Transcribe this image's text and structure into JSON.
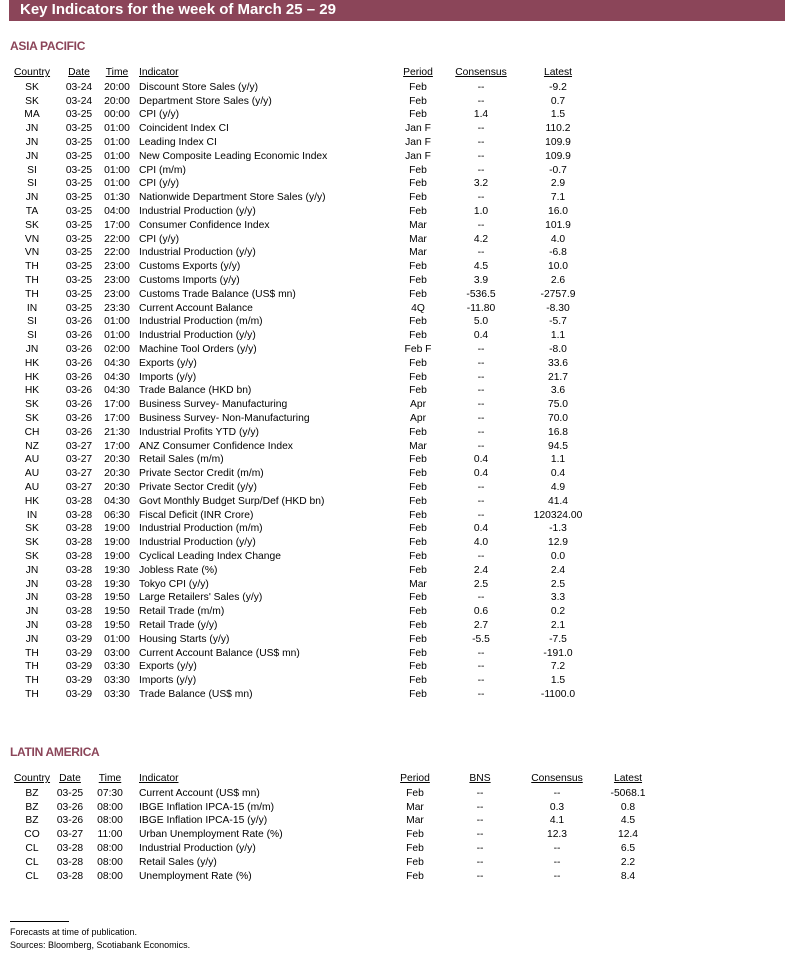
{
  "title": "Key Indicators for the week of March 25 – 29",
  "colors": {
    "accent": "#8b4559"
  },
  "asia": {
    "heading": "ASIA PACIFIC",
    "columns": [
      "Country",
      "Date",
      "Time",
      "Indicator",
      "Period",
      "Consensus",
      "Latest"
    ],
    "rows": [
      [
        "SK",
        "03-24",
        "20:00",
        "Discount Store Sales (y/y)",
        "Feb",
        "--",
        "-9.2"
      ],
      [
        "SK",
        "03-24",
        "20:00",
        "Department Store Sales (y/y)",
        "Feb",
        "--",
        "0.7"
      ],
      [
        "MA",
        "03-25",
        "00:00",
        "CPI (y/y)",
        "Feb",
        "1.4",
        "1.5"
      ],
      [
        "JN",
        "03-25",
        "01:00",
        "Coincident Index CI",
        "Jan F",
        "--",
        "110.2"
      ],
      [
        "JN",
        "03-25",
        "01:00",
        "Leading Index CI",
        "Jan F",
        "--",
        "109.9"
      ],
      [
        "JN",
        "03-25",
        "01:00",
        "New Composite Leading Economic Index",
        "Jan F",
        "--",
        "109.9"
      ],
      [
        "SI",
        "03-25",
        "01:00",
        "CPI (m/m)",
        "Feb",
        "--",
        "-0.7"
      ],
      [
        "SI",
        "03-25",
        "01:00",
        "CPI (y/y)",
        "Feb",
        "3.2",
        "2.9"
      ],
      [
        "JN",
        "03-25",
        "01:30",
        "Nationwide Department Store Sales (y/y)",
        "Feb",
        "--",
        "7.1"
      ],
      [
        "TA",
        "03-25",
        "04:00",
        "Industrial Production (y/y)",
        "Feb",
        "1.0",
        "16.0"
      ],
      [
        "SK",
        "03-25",
        "17:00",
        "Consumer Confidence Index",
        "Mar",
        "--",
        "101.9"
      ],
      [
        "VN",
        "03-25",
        "22:00",
        "CPI (y/y)",
        "Mar",
        "4.2",
        "4.0"
      ],
      [
        "VN",
        "03-25",
        "22:00",
        "Industrial Production (y/y)",
        "Mar",
        "--",
        "-6.8"
      ],
      [
        "TH",
        "03-25",
        "23:00",
        "Customs Exports (y/y)",
        "Feb",
        "4.5",
        "10.0"
      ],
      [
        "TH",
        "03-25",
        "23:00",
        "Customs Imports (y/y)",
        "Feb",
        "3.9",
        "2.6"
      ],
      [
        "TH",
        "03-25",
        "23:00",
        "Customs Trade Balance (US$ mn)",
        "Feb",
        "-536.5",
        "-2757.9"
      ],
      [
        "IN",
        "03-25",
        "23:30",
        "Current Account Balance",
        "4Q",
        "-11.80",
        "-8.30"
      ],
      [
        "SI",
        "03-26",
        "01:00",
        "Industrial Production (m/m)",
        "Feb",
        "5.0",
        "-5.7"
      ],
      [
        "SI",
        "03-26",
        "01:00",
        "Industrial Production (y/y)",
        "Feb",
        "0.4",
        "1.1"
      ],
      [
        "JN",
        "03-26",
        "02:00",
        "Machine Tool Orders (y/y)",
        "Feb F",
        "--",
        "-8.0"
      ],
      [
        "HK",
        "03-26",
        "04:30",
        "Exports (y/y)",
        "Feb",
        "--",
        "33.6"
      ],
      [
        "HK",
        "03-26",
        "04:30",
        "Imports (y/y)",
        "Feb",
        "--",
        "21.7"
      ],
      [
        "HK",
        "03-26",
        "04:30",
        "Trade Balance (HKD bn)",
        "Feb",
        "--",
        "3.6"
      ],
      [
        "SK",
        "03-26",
        "17:00",
        "Business Survey- Manufacturing",
        "Apr",
        "--",
        "75.0"
      ],
      [
        "SK",
        "03-26",
        "17:00",
        "Business Survey- Non-Manufacturing",
        "Apr",
        "--",
        "70.0"
      ],
      [
        "CH",
        "03-26",
        "21:30",
        "Industrial Profits YTD (y/y)",
        "Feb",
        "--",
        "16.8"
      ],
      [
        "NZ",
        "03-27",
        "17:00",
        "ANZ Consumer Confidence Index",
        "Mar",
        "--",
        "94.5"
      ],
      [
        "AU",
        "03-27",
        "20:30",
        "Retail Sales (m/m)",
        "Feb",
        "0.4",
        "1.1"
      ],
      [
        "AU",
        "03-27",
        "20:30",
        "Private Sector Credit (m/m)",
        "Feb",
        "0.4",
        "0.4"
      ],
      [
        "AU",
        "03-27",
        "20:30",
        "Private Sector Credit (y/y)",
        "Feb",
        "--",
        "4.9"
      ],
      [
        "HK",
        "03-28",
        "04:30",
        "Govt Monthly Budget Surp/Def (HKD bn)",
        "Feb",
        "--",
        "41.4"
      ],
      [
        "IN",
        "03-28",
        "06:30",
        "Fiscal Deficit (INR Crore)",
        "Feb",
        "--",
        "120324.00"
      ],
      [
        "SK",
        "03-28",
        "19:00",
        "Industrial Production (m/m)",
        "Feb",
        "0.4",
        "-1.3"
      ],
      [
        "SK",
        "03-28",
        "19:00",
        "Industrial Production (y/y)",
        "Feb",
        "4.0",
        "12.9"
      ],
      [
        "SK",
        "03-28",
        "19:00",
        "Cyclical Leading Index Change",
        "Feb",
        "--",
        "0.0"
      ],
      [
        "JN",
        "03-28",
        "19:30",
        "Jobless Rate (%)",
        "Feb",
        "2.4",
        "2.4"
      ],
      [
        "JN",
        "03-28",
        "19:30",
        "Tokyo CPI (y/y)",
        "Mar",
        "2.5",
        "2.5"
      ],
      [
        "JN",
        "03-28",
        "19:50",
        "Large Retailers' Sales (y/y)",
        "Feb",
        "--",
        "3.3"
      ],
      [
        "JN",
        "03-28",
        "19:50",
        "Retail Trade (m/m)",
        "Feb",
        "0.6",
        "0.2"
      ],
      [
        "JN",
        "03-28",
        "19:50",
        "Retail Trade (y/y)",
        "Feb",
        "2.7",
        "2.1"
      ],
      [
        "JN",
        "03-29",
        "01:00",
        "Housing Starts (y/y)",
        "Feb",
        "-5.5",
        "-7.5"
      ],
      [
        "TH",
        "03-29",
        "03:00",
        "Current Account Balance (US$ mn)",
        "Feb",
        "--",
        "-191.0"
      ],
      [
        "TH",
        "03-29",
        "03:30",
        "Exports (y/y)",
        "Feb",
        "--",
        "7.2"
      ],
      [
        "TH",
        "03-29",
        "03:30",
        "Imports (y/y)",
        "Feb",
        "--",
        "1.5"
      ],
      [
        "TH",
        "03-29",
        "03:30",
        "Trade Balance (US$ mn)",
        "Feb",
        "--",
        "-1100.0"
      ]
    ]
  },
  "latam": {
    "heading": "LATIN AMERICA",
    "columns": [
      "Country",
      "Date",
      "Time",
      "Indicator",
      "Period",
      "BNS",
      "Consensus",
      "Latest"
    ],
    "rows": [
      [
        "BZ",
        "03-25",
        "07:30",
        "Current Account (US$ mn)",
        "Feb",
        "--",
        "--",
        "-5068.1"
      ],
      [
        "BZ",
        "03-26",
        "08:00",
        "IBGE Inflation IPCA-15 (m/m)",
        "Mar",
        "--",
        "0.3",
        "0.8"
      ],
      [
        "BZ",
        "03-26",
        "08:00",
        "IBGE Inflation IPCA-15 (y/y)",
        "Mar",
        "--",
        "4.1",
        "4.5"
      ],
      [
        "CO",
        "03-27",
        "11:00",
        "Urban Unemployment Rate (%)",
        "Feb",
        "--",
        "12.3",
        "12.4"
      ],
      [
        "CL",
        "03-28",
        "08:00",
        "Industrial Production (y/y)",
        "Feb",
        "--",
        "--",
        "6.5"
      ],
      [
        "CL",
        "03-28",
        "08:00",
        "Retail Sales (y/y)",
        "Feb",
        "--",
        "--",
        "2.2"
      ],
      [
        "CL",
        "03-28",
        "08:00",
        "Unemployment Rate (%)",
        "Feb",
        "--",
        "--",
        "8.4"
      ]
    ]
  },
  "footnotes": [
    "Forecasts at time of publication.",
    "Sources: Bloomberg, Scotiabank Economics."
  ]
}
